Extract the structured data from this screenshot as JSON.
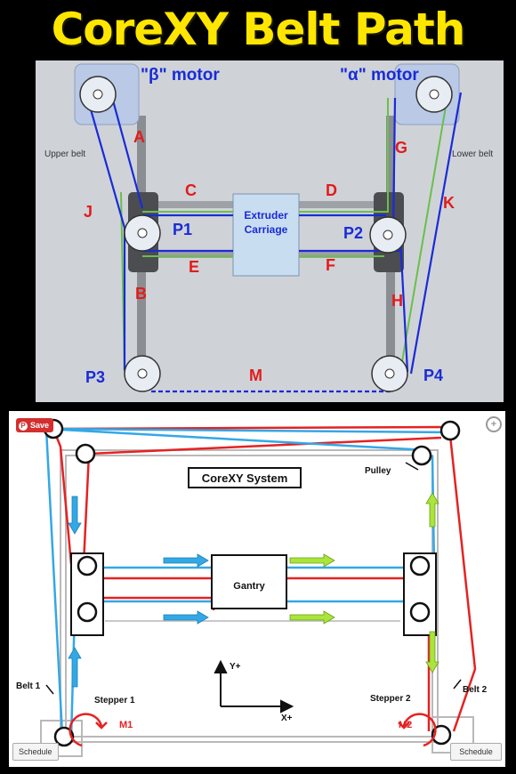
{
  "title": "CoreXY Belt Path",
  "top_diagram": {
    "motor_beta": "\"β\" motor",
    "motor_alpha": "\"α\" motor",
    "upper_belt": "Upper belt",
    "lower_belt": "Lower belt",
    "carriage_line1": "Extruder",
    "carriage_line2": "Carriage",
    "pulleys": [
      "P1",
      "P2",
      "P3",
      "P4"
    ],
    "segments": [
      "A",
      "B",
      "C",
      "D",
      "E",
      "F",
      "G",
      "H",
      "J",
      "K",
      "M"
    ],
    "colors": {
      "belt_blue": "#1a2bd6",
      "belt_green": "#6abf4b",
      "label_red": "#e21b1b",
      "pulley_label": "#1a2bd6"
    }
  },
  "bottom_diagram": {
    "save_label": "Save",
    "system_title": "CoreXY System",
    "pulley_label": "Pulley",
    "gantry_label": "Gantry",
    "belt1_label": "Belt 1",
    "belt2_label": "Belt 2",
    "stepper1_label": "Stepper 1",
    "stepper2_label": "Stepper 2",
    "m1_label": "M1",
    "m2_label": "M2",
    "y_axis_label": "Y+",
    "x_axis_label": "X+",
    "schedule_left": "Schedule",
    "schedule_right": "Schedule",
    "zoom_icon": "zoom-icon",
    "colors": {
      "belt_red": "#e52222",
      "belt_blue": "#33a8e6",
      "arrow_green": "#a9e53a",
      "arrow_blue": "#33a8e6"
    }
  }
}
